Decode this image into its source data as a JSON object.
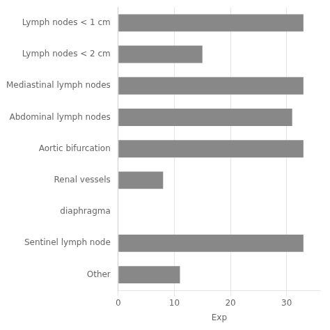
{
  "chart_data": {
    "type": "bar",
    "orientation": "horizontal",
    "categories": [
      "Lymph nodes < 1 cm",
      "Lymph nodes < 2 cm",
      "Mediastinal lymph nodes",
      "Abdominal lymph nodes",
      "Aortic bifurcation",
      "Renal vessels",
      "diaphragma",
      "Sentinel lymph node",
      "Other"
    ],
    "values": [
      33,
      15,
      33,
      31,
      33,
      8,
      0,
      33,
      11
    ],
    "color": "#888888",
    "xlabel": "Exp",
    "xlim": [
      0,
      36
    ],
    "xticks": [
      0,
      10,
      20,
      30
    ],
    "grid": true
  }
}
